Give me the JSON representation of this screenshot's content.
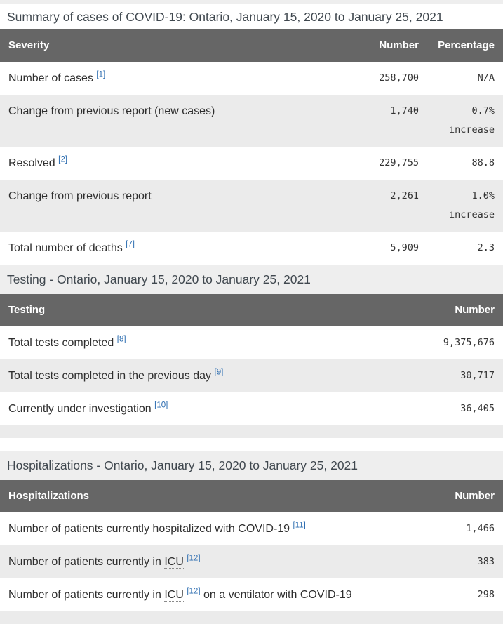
{
  "colors": {
    "header_bg": "#666666",
    "header_text": "#ffffff",
    "stripe_bg": "#ebebeb",
    "caption_band_bg": "#eeeeee",
    "top_strip_bg": "#eeeeee",
    "link": "#2b6cb0",
    "title_text": "#40484f",
    "body_text": "#333333"
  },
  "tables": [
    {
      "id": "severity",
      "caption": "Summary of cases of COVID-19: Ontario, January 15, 2020 to January 25, 2021",
      "caption_variant": "plain",
      "columns": [
        {
          "label": "Severity",
          "align": "left"
        },
        {
          "label": "Number",
          "align": "right"
        },
        {
          "label": "Percentage",
          "align": "right"
        }
      ],
      "rows": [
        {
          "label_parts": [
            {
              "type": "text",
              "text": "Number of cases"
            },
            {
              "type": "ref",
              "text": "[1]"
            }
          ],
          "values": [
            {
              "text": "258,700"
            },
            {
              "text": "N/A",
              "abbr": true
            }
          ]
        },
        {
          "label_parts": [
            {
              "type": "text",
              "text": "Change from previous report (new cases)"
            }
          ],
          "values": [
            {
              "text": "1,740"
            },
            {
              "text": "0.7% increase"
            }
          ]
        },
        {
          "label_parts": [
            {
              "type": "text",
              "text": "Resolved"
            },
            {
              "type": "ref",
              "text": "[2]"
            }
          ],
          "values": [
            {
              "text": "229,755"
            },
            {
              "text": "88.8"
            }
          ]
        },
        {
          "label_parts": [
            {
              "type": "text",
              "text": "Change from previous report"
            }
          ],
          "values": [
            {
              "text": "2,261"
            },
            {
              "text": "1.0% increase"
            }
          ]
        },
        {
          "label_parts": [
            {
              "type": "text",
              "text": "Total number of deaths"
            },
            {
              "type": "ref",
              "text": "[7]"
            }
          ],
          "values": [
            {
              "text": "5,909"
            },
            {
              "text": "2.3"
            }
          ]
        }
      ],
      "footer_strip": false,
      "gap_after": false
    },
    {
      "id": "testing",
      "caption": "Testing - Ontario, January 15, 2020 to January 25, 2021",
      "caption_variant": "band",
      "columns": [
        {
          "label": "Testing",
          "align": "left"
        },
        {
          "label": "Number",
          "align": "right"
        }
      ],
      "rows": [
        {
          "label_parts": [
            {
              "type": "text",
              "text": "Total tests completed"
            },
            {
              "type": "ref",
              "text": "[8]"
            }
          ],
          "values": [
            {
              "text": "9,375,676"
            }
          ]
        },
        {
          "label_parts": [
            {
              "type": "text",
              "text": "Total tests completed in the previous day"
            },
            {
              "type": "ref",
              "text": "[9]"
            }
          ],
          "values": [
            {
              "text": "30,717"
            }
          ]
        },
        {
          "label_parts": [
            {
              "type": "text",
              "text": "Currently under investigation"
            },
            {
              "type": "ref",
              "text": "[10]"
            }
          ],
          "values": [
            {
              "text": "36,405"
            }
          ]
        }
      ],
      "footer_strip": true,
      "gap_after": true
    },
    {
      "id": "hospitalizations",
      "caption": "Hospitalizations - Ontario, January 15, 2020 to January 25, 2021",
      "caption_variant": "band",
      "columns": [
        {
          "label": "Hospitalizations",
          "align": "left"
        },
        {
          "label": "Number",
          "align": "right"
        }
      ],
      "rows": [
        {
          "label_parts": [
            {
              "type": "text",
              "text": "Number of patients currently hospitalized with COVID-19"
            },
            {
              "type": "ref",
              "text": "[11]"
            }
          ],
          "values": [
            {
              "text": "1,466"
            }
          ]
        },
        {
          "label_parts": [
            {
              "type": "text",
              "text": "Number of patients currently in"
            },
            {
              "type": "abbr",
              "text": "ICU"
            },
            {
              "type": "ref",
              "text": "[12]"
            }
          ],
          "values": [
            {
              "text": "383"
            }
          ]
        },
        {
          "label_parts": [
            {
              "type": "text",
              "text": "Number of patients currently in"
            },
            {
              "type": "abbr",
              "text": "ICU"
            },
            {
              "type": "ref",
              "text": "[12]"
            },
            {
              "type": "text",
              "text": "on a ventilator with COVID-19"
            }
          ],
          "values": [
            {
              "text": "298"
            }
          ]
        }
      ],
      "footer_strip": true,
      "gap_after": false
    }
  ]
}
